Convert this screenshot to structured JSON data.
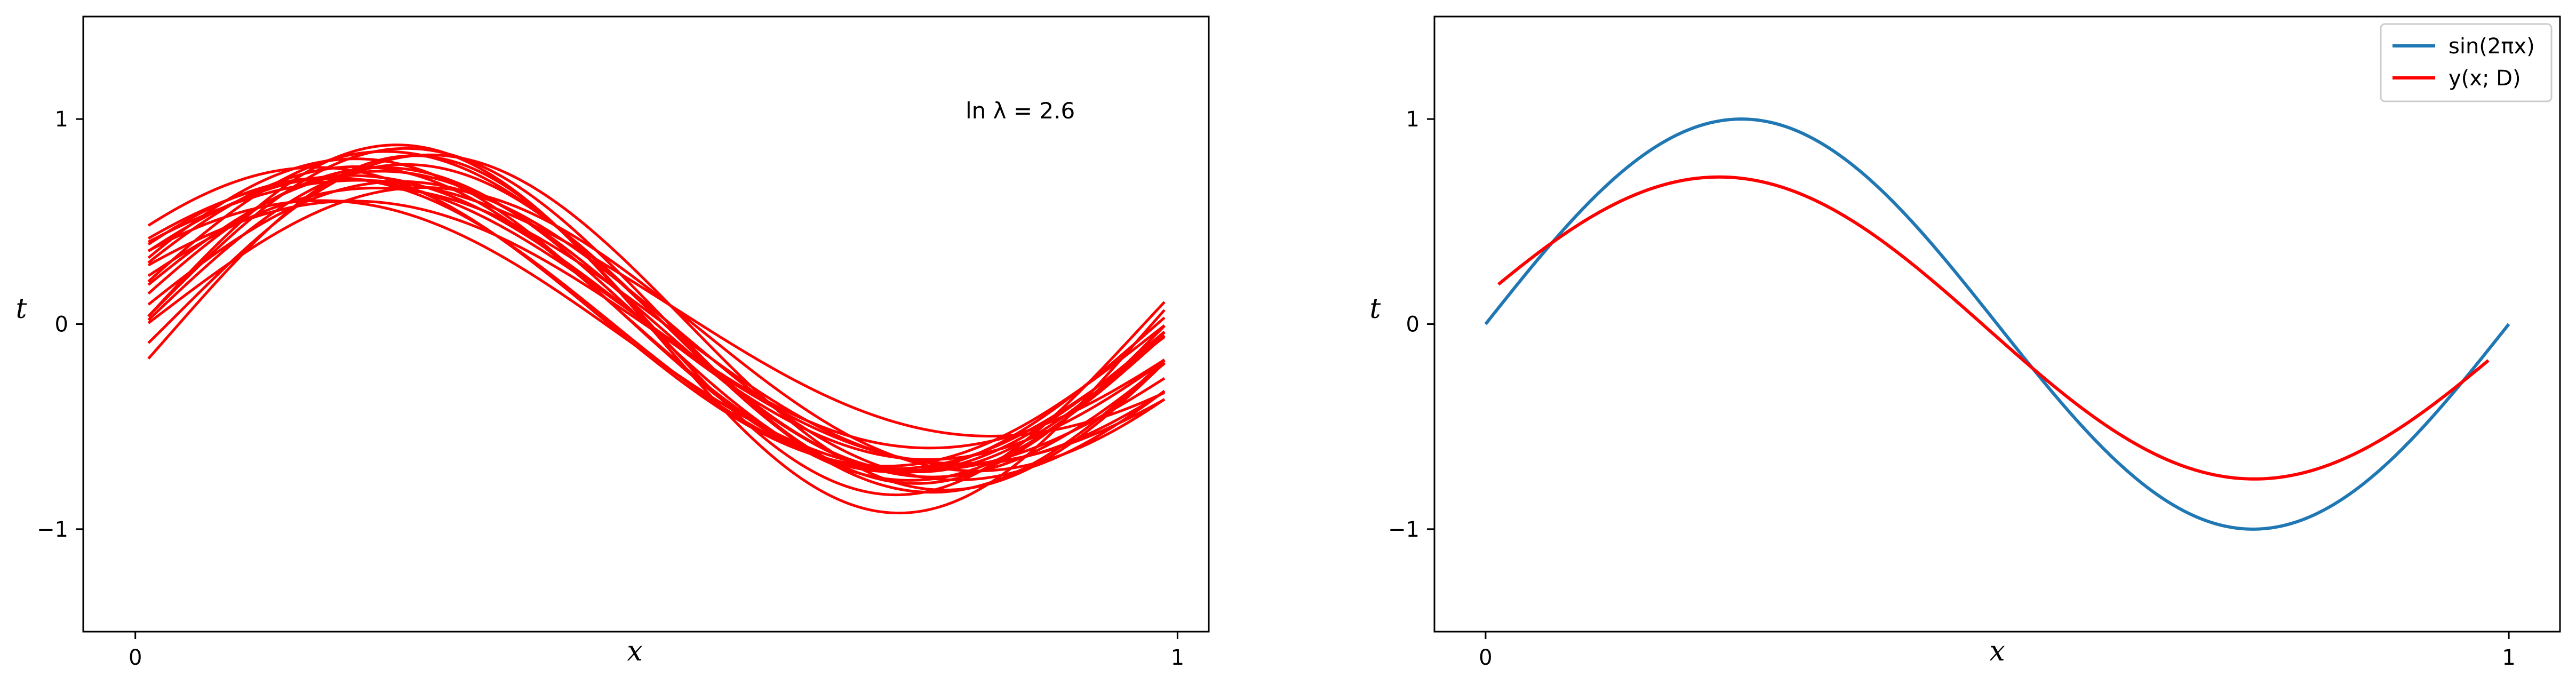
{
  "chart_data": [
    {
      "type": "line",
      "panel": "left",
      "xlabel": "x",
      "ylabel": "t",
      "xlim": [
        -0.05,
        1.03
      ],
      "ylim": [
        -1.5,
        1.5
      ],
      "xticks": [
        0,
        1
      ],
      "xtick_labels": [
        "0",
        "1"
      ],
      "yticks": [
        -1,
        0,
        1
      ],
      "ytick_labels": [
        "−1",
        "0",
        "1"
      ],
      "annotation": "ln λ = 2.6",
      "grid": false,
      "line_color": "#ff0000",
      "x_range": [
        0.0125,
        0.9875
      ],
      "series_note_count": 20,
      "series": [
        {
          "amp": 0.72,
          "phase": 0.0,
          "offset": 0.0,
          "scale": 0.96
        },
        {
          "amp": 0.66,
          "phase": 0.015,
          "offset": 0.03,
          "scale": 0.92
        },
        {
          "amp": 0.78,
          "phase": -0.012,
          "offset": -0.02,
          "scale": 1.0
        },
        {
          "amp": 0.62,
          "phase": 0.02,
          "offset": 0.05,
          "scale": 0.9
        },
        {
          "amp": 0.84,
          "phase": 0.01,
          "offset": 0.02,
          "scale": 1.05
        },
        {
          "amp": 0.7,
          "phase": -0.02,
          "offset": -0.03,
          "scale": 0.95
        },
        {
          "amp": 0.74,
          "phase": 0.03,
          "offset": 0.04,
          "scale": 0.98
        },
        {
          "amp": 0.6,
          "phase": 0.0,
          "offset": -0.04,
          "scale": 0.88
        },
        {
          "amp": 0.8,
          "phase": -0.03,
          "offset": 0.01,
          "scale": 1.02
        },
        {
          "amp": 0.68,
          "phase": 0.04,
          "offset": 0.0,
          "scale": 0.94
        },
        {
          "amp": 0.76,
          "phase": 0.005,
          "offset": 0.06,
          "scale": 0.99
        },
        {
          "amp": 0.64,
          "phase": -0.01,
          "offset": -0.01,
          "scale": 0.91
        },
        {
          "amp": 0.72,
          "phase": 0.025,
          "offset": 0.02,
          "scale": 0.97
        },
        {
          "amp": 0.58,
          "phase": -0.015,
          "offset": 0.08,
          "scale": 0.85
        },
        {
          "amp": 0.86,
          "phase": 0.0,
          "offset": -0.05,
          "scale": 1.08
        },
        {
          "amp": 0.7,
          "phase": 0.05,
          "offset": 0.03,
          "scale": 0.93
        },
        {
          "amp": 0.66,
          "phase": -0.04,
          "offset": -0.02,
          "scale": 0.96
        },
        {
          "amp": 0.74,
          "phase": 0.01,
          "offset": 0.0,
          "scale": 1.0
        },
        {
          "amp": 0.62,
          "phase": 0.03,
          "offset": -0.06,
          "scale": 0.89
        },
        {
          "amp": 0.8,
          "phase": -0.005,
          "offset": 0.04,
          "scale": 1.03
        }
      ]
    },
    {
      "type": "line",
      "panel": "right",
      "xlabel": "x",
      "ylabel": "t",
      "xlim": [
        -0.05,
        1.05
      ],
      "ylim": [
        -1.5,
        1.5
      ],
      "xticks": [
        0,
        1
      ],
      "xtick_labels": [
        "0",
        "1"
      ],
      "yticks": [
        -1,
        0,
        1
      ],
      "ytick_labels": [
        "−1",
        "0",
        "1"
      ],
      "grid": false,
      "legend_position": "top-right",
      "series": [
        {
          "name": "sin(2πx)",
          "color": "#1f77b4",
          "x_range": [
            0,
            1
          ],
          "function": "sin(2*pi*x)"
        },
        {
          "name": "y(x; D)",
          "color": "#ff0000",
          "x_range": [
            0.0125,
            0.98
          ],
          "amp": 0.71,
          "phase": 0.01,
          "offset": -0.02,
          "scale": 0.97
        }
      ]
    }
  ]
}
